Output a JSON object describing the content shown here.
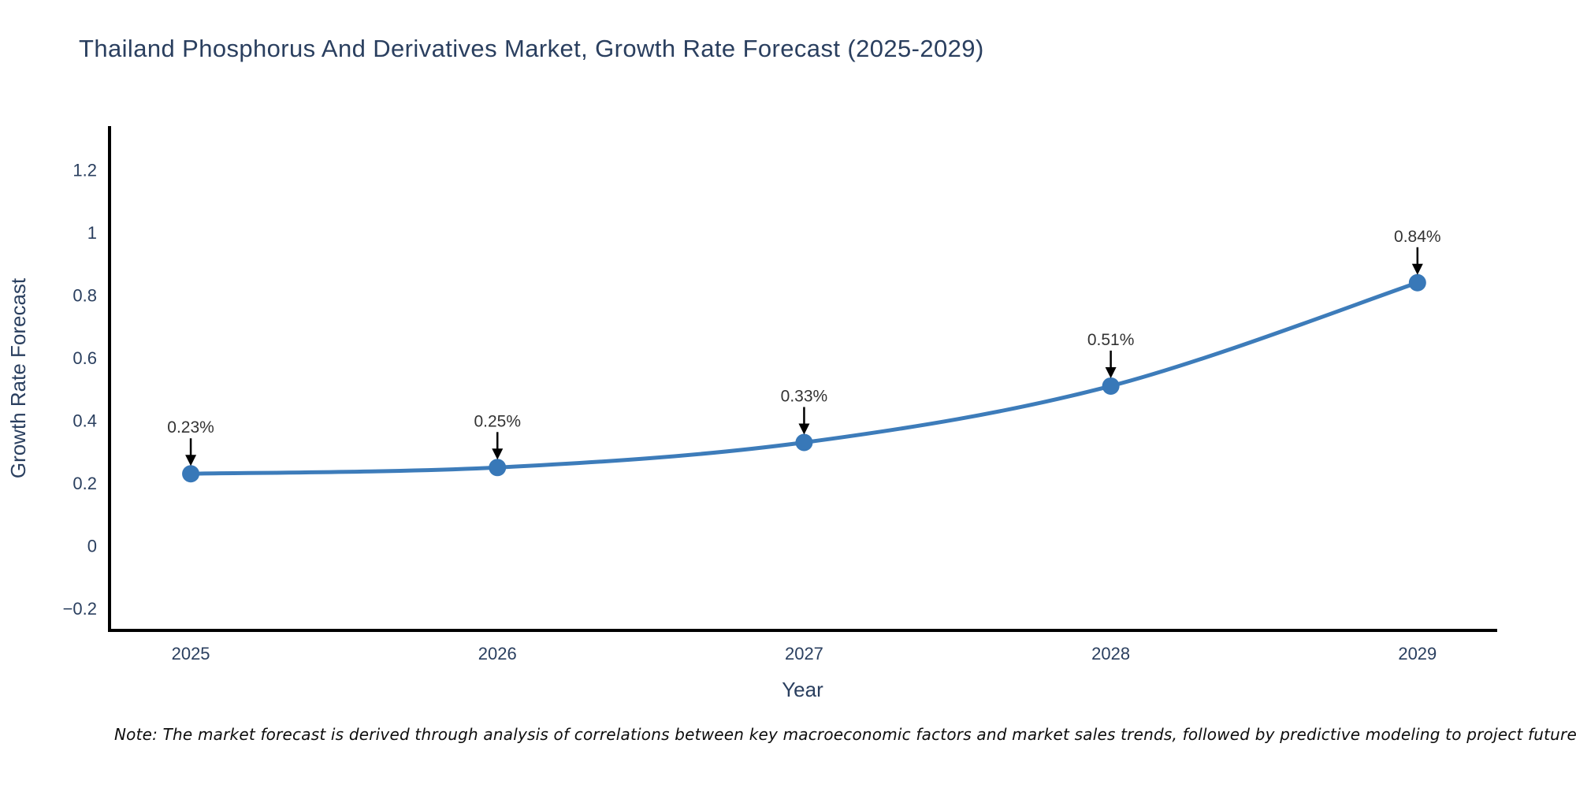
{
  "title": "Thailand Phosphorus And Derivatives Market, Growth Rate Forecast (2025-2029)",
  "note": "Note: The market forecast is derived through analysis of correlations between key macroeconomic factors and market sales trends, followed by predictive modeling to project future sales",
  "chart_data": {
    "type": "line",
    "title": "Thailand Phosphorus And Derivatives Market, Growth Rate Forecast (2025-2029)",
    "x": [
      2025,
      2026,
      2027,
      2028,
      2029
    ],
    "x_tick_labels": [
      "2025",
      "2026",
      "2027",
      "2028",
      "2029"
    ],
    "values": [
      0.23,
      0.25,
      0.33,
      0.51,
      0.84
    ],
    "point_labels": [
      "0.23%",
      "0.25%",
      "0.33%",
      "0.51%",
      "0.84%"
    ],
    "xlabel": "Year",
    "ylabel": "Growth Rate Forecast",
    "y_ticks": [
      -0.2,
      0,
      0.2,
      0.4,
      0.6,
      0.8,
      1,
      1.2
    ],
    "y_tick_labels": [
      "−0.2",
      "0",
      "0.2",
      "0.4",
      "0.6",
      "0.8",
      "1",
      "1.2"
    ],
    "xlim": [
      2024.73,
      2029.26
    ],
    "ylim": [
      -0.27,
      1.34
    ],
    "grid": false,
    "legend_position": "none",
    "line_shape": "spline",
    "line_color": "#3d7cba",
    "marker_color": "#3878b8",
    "annotation_color": "#333333",
    "arrow_color": "#000000",
    "axis_line_color": "#000000",
    "tick_color": "#2a3f5f"
  },
  "colors": {
    "background": "#ffffff",
    "title_text": "#2a3f5f",
    "note_text": "#0d0d0d"
  }
}
